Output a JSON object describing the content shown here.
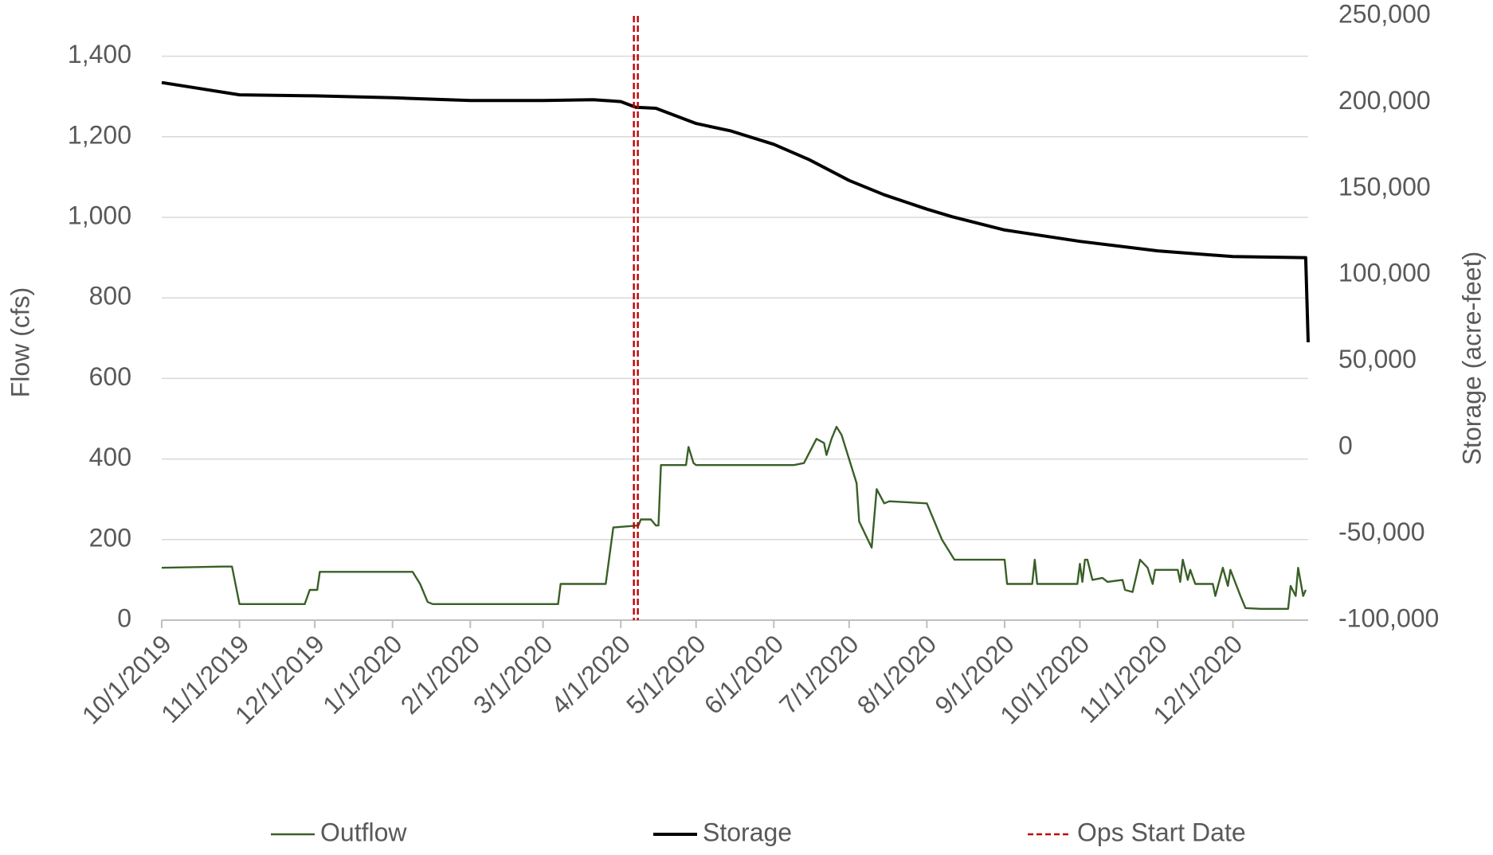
{
  "chart_data": {
    "type": "line",
    "xlim": [
      "2019-10-01",
      "2020-12-31"
    ],
    "xticks": [
      {
        "value": "2019-10-01",
        "label": "10/1/2019"
      },
      {
        "value": "2019-11-01",
        "label": "11/1/2019"
      },
      {
        "value": "2019-12-01",
        "label": "12/1/2019"
      },
      {
        "value": "2020-01-01",
        "label": "1/1/2020"
      },
      {
        "value": "2020-02-01",
        "label": "2/1/2020"
      },
      {
        "value": "2020-03-01",
        "label": "3/1/2020"
      },
      {
        "value": "2020-04-01",
        "label": "4/1/2020"
      },
      {
        "value": "2020-05-01",
        "label": "5/1/2020"
      },
      {
        "value": "2020-06-01",
        "label": "6/1/2020"
      },
      {
        "value": "2020-07-01",
        "label": "7/1/2020"
      },
      {
        "value": "2020-08-01",
        "label": "8/1/2020"
      },
      {
        "value": "2020-09-01",
        "label": "9/1/2020"
      },
      {
        "value": "2020-10-01",
        "label": "10/1/2020"
      },
      {
        "value": "2020-11-01",
        "label": "11/1/2020"
      },
      {
        "value": "2020-12-01",
        "label": "12/1/2020"
      }
    ],
    "ylabel": "Flow (cfs)",
    "ylim": [
      0,
      1500
    ],
    "yticks": [
      0,
      200,
      400,
      600,
      800,
      {
        "value": 1000,
        "label": "1,000"
      },
      {
        "value": 1200,
        "label": "1,200"
      },
      {
        "value": 1400,
        "label": "1,400"
      }
    ],
    "y2label": "Storage (acre-feet)",
    "y2lim": [
      -100000,
      250000
    ],
    "y2ticks": [
      {
        "value": -100000,
        "label": "-100,000"
      },
      {
        "value": -50000,
        "label": "-50,000"
      },
      0,
      {
        "value": 50000,
        "label": "50,000"
      },
      {
        "value": 100000,
        "label": "100,000"
      },
      {
        "value": 150000,
        "label": "150,000"
      },
      {
        "value": 200000,
        "label": "200,000"
      },
      {
        "value": 250000,
        "label": "250,000"
      }
    ],
    "grid": true,
    "legend": "bottom",
    "series": [
      {
        "name": "Outflow",
        "color": "#3a5f27",
        "axis": "y",
        "x": [
          "2019-10-01",
          "2019-10-25",
          "2019-10-29",
          "2019-11-01",
          "2019-11-27",
          "2019-11-29",
          "2019-12-02",
          "2019-12-03",
          "2020-01-09",
          "2020-01-12",
          "2020-01-15",
          "2020-01-17",
          "2020-03-07",
          "2020-03-08",
          "2020-03-26",
          "2020-03-29",
          "2020-04-08",
          "2020-04-09",
          "2020-04-13",
          "2020-04-15",
          "2020-04-16",
          "2020-04-17",
          "2020-04-27",
          "2020-04-28",
          "2020-04-30",
          "2020-05-01",
          "2020-06-09",
          "2020-06-13",
          "2020-06-18",
          "2020-06-21",
          "2020-06-22",
          "2020-06-24",
          "2020-06-26",
          "2020-06-28",
          "2020-07-04",
          "2020-07-05",
          "2020-07-10",
          "2020-07-12",
          "2020-07-15",
          "2020-07-17",
          "2020-08-01",
          "2020-08-07",
          "2020-08-12",
          "2020-09-01",
          "2020-09-02",
          "2020-09-12",
          "2020-09-13",
          "2020-09-14",
          "2020-09-30",
          "2020-10-01",
          "2020-10-02",
          "2020-10-03",
          "2020-10-04",
          "2020-10-06",
          "2020-10-10",
          "2020-10-12",
          "2020-10-18",
          "2020-10-19",
          "2020-10-22",
          "2020-10-25",
          "2020-10-28",
          "2020-10-30",
          "2020-10-31",
          "2020-11-09",
          "2020-11-10",
          "2020-11-11",
          "2020-11-13",
          "2020-11-14",
          "2020-11-16",
          "2020-11-23",
          "2020-11-24",
          "2020-11-27",
          "2020-11-29",
          "2020-11-30",
          "2020-12-04",
          "2020-12-06",
          "2020-12-12",
          "2020-12-23",
          "2020-12-24",
          "2020-12-26",
          "2020-12-27",
          "2020-12-29",
          "2020-12-30"
        ],
        "values": [
          130,
          133,
          133,
          40,
          40,
          75,
          75,
          120,
          120,
          90,
          45,
          40,
          40,
          90,
          90,
          230,
          235,
          250,
          250,
          235,
          235,
          385,
          385,
          430,
          390,
          385,
          385,
          390,
          450,
          440,
          410,
          450,
          480,
          460,
          340,
          245,
          180,
          325,
          290,
          295,
          290,
          200,
          150,
          150,
          90,
          90,
          150,
          90,
          90,
          140,
          95,
          150,
          150,
          100,
          105,
          95,
          100,
          75,
          70,
          150,
          130,
          90,
          125,
          125,
          95,
          150,
          100,
          125,
          90,
          90,
          60,
          130,
          85,
          125,
          60,
          30,
          28,
          28,
          85,
          60,
          130,
          60,
          75
        ]
      },
      {
        "name": "Storage",
        "color": "#000000",
        "axis": "y2",
        "x": [
          "2019-10-01",
          "2019-11-01",
          "2019-12-01",
          "2020-01-01",
          "2020-02-01",
          "2020-03-01",
          "2020-03-21",
          "2020-04-01",
          "2020-04-07",
          "2020-04-15",
          "2020-05-01",
          "2020-05-15",
          "2020-06-01",
          "2020-06-15",
          "2020-07-01",
          "2020-07-15",
          "2020-08-01",
          "2020-08-11",
          "2020-09-01",
          "2020-10-01",
          "2020-11-01",
          "2020-12-01",
          "2020-12-29",
          "2020-12-30",
          "2020-12-31"
        ],
        "values": [
          211400,
          204300,
          203700,
          202600,
          201000,
          201000,
          201500,
          200400,
          197100,
          196500,
          187700,
          183300,
          175600,
          166800,
          154700,
          146400,
          138100,
          133700,
          126000,
          119400,
          113900,
          110600,
          110000,
          110000,
          61000
        ]
      }
    ],
    "vlines": [
      {
        "name": "Ops Start Date",
        "color": "#c00000",
        "x": "2020-04-07"
      }
    ]
  }
}
